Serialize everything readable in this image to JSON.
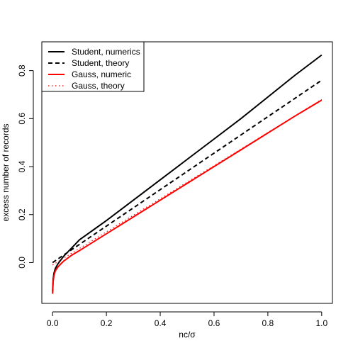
{
  "chart_data": {
    "type": "line",
    "title": "",
    "xlabel": "nc/σ",
    "ylabel": "excess number of records",
    "xlim": [
      -0.04,
      1.04
    ],
    "ylim": [
      -0.17,
      0.92
    ],
    "x_ticks": [
      0.0,
      0.2,
      0.4,
      0.6,
      0.8,
      1.0
    ],
    "x_tick_labels": [
      "0.0",
      "0.2",
      "0.4",
      "0.6",
      "0.8",
      "1.0"
    ],
    "y_ticks": [
      0.0,
      0.2,
      0.4,
      0.6,
      0.8
    ],
    "y_tick_labels": [
      "0.0",
      "0.2",
      "0.4",
      "0.6",
      "0.8"
    ],
    "grid": false,
    "legend_position": "top-left",
    "series": [
      {
        "name": "Student, numerics",
        "color": "#000000",
        "linestyle": "solid",
        "x": [
          0.0,
          0.002,
          0.005,
          0.01,
          0.02,
          0.04,
          0.07,
          0.1,
          0.15,
          0.2,
          0.3,
          0.4,
          0.5,
          0.6,
          0.7,
          0.8,
          0.9,
          1.0
        ],
        "y": [
          -0.12,
          -0.07,
          -0.045,
          -0.025,
          -0.005,
          0.025,
          0.06,
          0.095,
          0.135,
          0.175,
          0.26,
          0.345,
          0.43,
          0.515,
          0.6,
          0.69,
          0.78,
          0.865
        ]
      },
      {
        "name": "Student, theory",
        "color": "#000000",
        "linestyle": "dashed",
        "x": [
          0.0,
          0.2,
          0.4,
          0.6,
          0.8,
          1.0
        ],
        "y": [
          0.0,
          0.152,
          0.304,
          0.456,
          0.608,
          0.76
        ]
      },
      {
        "name": "Gauss, numeric",
        "color": "#ff0000",
        "linestyle": "solid",
        "x": [
          0.0,
          0.002,
          0.005,
          0.01,
          0.02,
          0.04,
          0.07,
          0.1,
          0.15,
          0.2,
          0.3,
          0.4,
          0.5,
          0.6,
          0.7,
          0.8,
          0.9,
          1.0
        ],
        "y": [
          -0.13,
          -0.08,
          -0.055,
          -0.035,
          -0.018,
          0.005,
          0.03,
          0.05,
          0.085,
          0.12,
          0.19,
          0.26,
          0.33,
          0.4,
          0.47,
          0.54,
          0.61,
          0.677
        ]
      },
      {
        "name": "Gauss, theory",
        "color": "#ff0000",
        "linestyle": "dotted",
        "x": [
          0.0,
          0.2,
          0.4,
          0.6,
          0.8,
          1.0
        ],
        "y": [
          -0.01,
          0.128,
          0.266,
          0.404,
          0.542,
          0.68
        ]
      }
    ]
  }
}
